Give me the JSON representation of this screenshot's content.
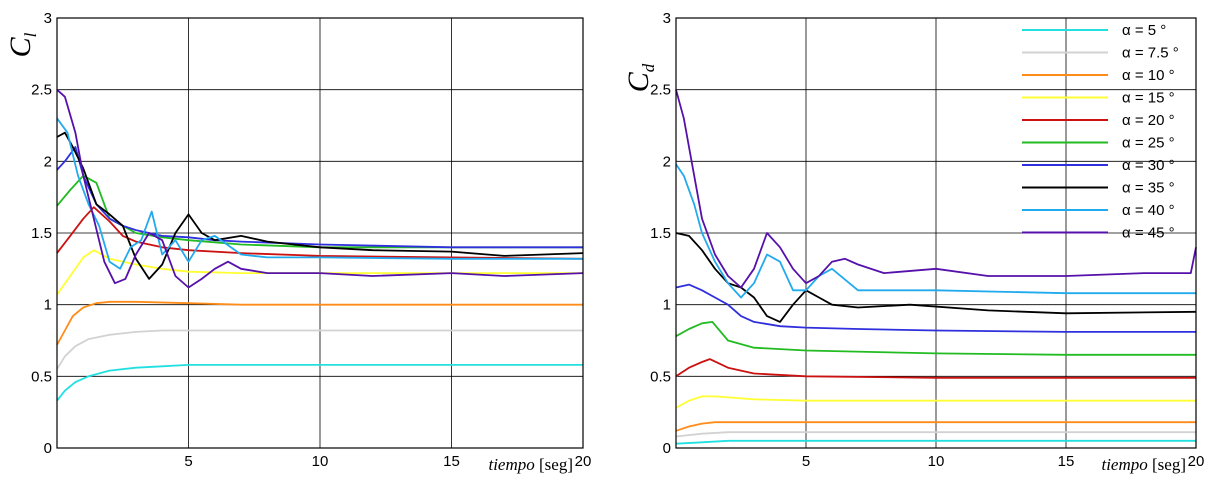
{
  "chart_data": [
    {
      "type": "line",
      "title": "",
      "ylabel": "C",
      "ylabel_sub": "l",
      "xlabel_italic": "tiempo",
      "xlabel_unit": "[seg]",
      "xlim": [
        0,
        20
      ],
      "ylim": [
        0,
        3
      ],
      "x_ticks": [
        "5",
        "10",
        "15",
        "20"
      ],
      "y_ticks": [
        "0",
        "0.5",
        "1",
        "1.5",
        "2",
        "2.5",
        "3"
      ],
      "grid": true,
      "series": [
        {
          "name": "α = 5 °",
          "color": "#22e0e0",
          "x": [
            0,
            0.3,
            0.7,
            1.2,
            2,
            3,
            4,
            5,
            7,
            10,
            15,
            20
          ],
          "y": [
            0.33,
            0.4,
            0.46,
            0.5,
            0.54,
            0.56,
            0.57,
            0.58,
            0.58,
            0.58,
            0.58,
            0.58
          ]
        },
        {
          "name": "α = 7.5 °",
          "color": "#d2d2d2",
          "x": [
            0,
            0.3,
            0.7,
            1.2,
            2,
            3,
            4,
            5,
            7,
            10,
            15,
            20
          ],
          "y": [
            0.55,
            0.64,
            0.71,
            0.76,
            0.79,
            0.81,
            0.82,
            0.82,
            0.82,
            0.82,
            0.82,
            0.82
          ]
        },
        {
          "name": "α = 10 °",
          "color": "#ff8c1a",
          "x": [
            0,
            0.3,
            0.6,
            1,
            1.5,
            2,
            3,
            5,
            7,
            10,
            15,
            20
          ],
          "y": [
            0.72,
            0.82,
            0.92,
            0.98,
            1.01,
            1.02,
            1.02,
            1.01,
            1.0,
            1.0,
            1.0,
            1.0
          ]
        },
        {
          "name": "α = 15 °",
          "color": "#ffff33",
          "x": [
            0,
            0.5,
            1,
            1.4,
            2,
            3,
            4,
            5,
            7,
            10,
            15,
            20
          ],
          "y": [
            1.07,
            1.2,
            1.33,
            1.38,
            1.32,
            1.28,
            1.25,
            1.23,
            1.22,
            1.22,
            1.22,
            1.22
          ]
        },
        {
          "name": "α = 20 °",
          "color": "#cc1111",
          "x": [
            0,
            0.5,
            1,
            1.4,
            2,
            2.5,
            3,
            4,
            5,
            7,
            10,
            15,
            20
          ],
          "y": [
            1.36,
            1.48,
            1.6,
            1.68,
            1.58,
            1.48,
            1.44,
            1.4,
            1.38,
            1.36,
            1.34,
            1.33,
            1.32
          ]
        },
        {
          "name": "α = 25 °",
          "color": "#22bb22",
          "x": [
            0,
            0.5,
            1,
            1.5,
            2,
            2.5,
            3,
            4,
            5,
            7,
            10,
            15,
            20
          ],
          "y": [
            1.69,
            1.8,
            1.9,
            1.85,
            1.6,
            1.55,
            1.5,
            1.47,
            1.45,
            1.42,
            1.4,
            1.4,
            1.4
          ]
        },
        {
          "name": "α = 30 °",
          "color": "#2f2fdd",
          "x": [
            0,
            0.3,
            0.7,
            1,
            1.5,
            2,
            2.5,
            3,
            3.5,
            4,
            5,
            6,
            7,
            10,
            15,
            20
          ],
          "y": [
            1.94,
            2.0,
            2.1,
            1.9,
            1.7,
            1.6,
            1.55,
            1.52,
            1.5,
            1.48,
            1.47,
            1.45,
            1.44,
            1.42,
            1.4,
            1.4
          ]
        },
        {
          "name": "α = 35 °",
          "color": "#000000",
          "x": [
            0,
            0.3,
            0.6,
            1,
            1.5,
            2,
            2.5,
            3,
            3.5,
            4,
            4.5,
            5,
            5.5,
            6,
            7,
            8,
            10,
            12,
            15,
            17,
            20
          ],
          "y": [
            2.17,
            2.2,
            2.1,
            1.95,
            1.7,
            1.63,
            1.55,
            1.32,
            1.18,
            1.28,
            1.5,
            1.63,
            1.5,
            1.45,
            1.48,
            1.44,
            1.4,
            1.38,
            1.37,
            1.34,
            1.36
          ]
        },
        {
          "name": "α = 40 °",
          "color": "#22aaee",
          "x": [
            0,
            0.4,
            0.8,
            1.2,
            1.6,
            2,
            2.4,
            2.8,
            3.2,
            3.6,
            4,
            4.5,
            5,
            5.5,
            6,
            7,
            8,
            10,
            15,
            20
          ],
          "y": [
            2.3,
            2.2,
            1.9,
            1.7,
            1.55,
            1.3,
            1.25,
            1.4,
            1.45,
            1.65,
            1.35,
            1.45,
            1.3,
            1.45,
            1.48,
            1.35,
            1.33,
            1.33,
            1.32,
            1.32
          ]
        },
        {
          "name": "α = 45 °",
          "color": "#5511aa",
          "x": [
            0,
            0.3,
            0.7,
            1,
            1.4,
            1.8,
            2.2,
            2.6,
            3,
            3.5,
            4,
            4.5,
            5,
            5.5,
            6,
            6.5,
            7,
            8,
            10,
            12,
            15,
            17,
            20
          ],
          "y": [
            2.5,
            2.45,
            2.2,
            1.9,
            1.6,
            1.3,
            1.15,
            1.18,
            1.35,
            1.5,
            1.45,
            1.2,
            1.12,
            1.18,
            1.25,
            1.3,
            1.25,
            1.22,
            1.22,
            1.2,
            1.22,
            1.2,
            1.22
          ]
        }
      ]
    },
    {
      "type": "line",
      "title": "",
      "ylabel": "C",
      "ylabel_sub": "d",
      "xlabel_italic": "tiempo",
      "xlabel_unit": "[seg]",
      "xlim": [
        0,
        20
      ],
      "ylim": [
        0,
        3
      ],
      "x_ticks": [
        "5",
        "10",
        "15",
        "20"
      ],
      "y_ticks": [
        "0",
        "0.5",
        "1",
        "1.5",
        "2",
        "2.5",
        "3"
      ],
      "grid": true,
      "legend": "top-right",
      "series": [
        {
          "name": "α = 5 °",
          "color": "#22e0e0",
          "x": [
            0,
            1,
            2,
            5,
            10,
            20
          ],
          "y": [
            0.03,
            0.04,
            0.05,
            0.05,
            0.05,
            0.05
          ]
        },
        {
          "name": "α = 7.5 °",
          "color": "#d2d2d2",
          "x": [
            0,
            1,
            2,
            5,
            10,
            20
          ],
          "y": [
            0.08,
            0.1,
            0.11,
            0.11,
            0.11,
            0.11
          ]
        },
        {
          "name": "α = 10 °",
          "color": "#ff8c1a",
          "x": [
            0,
            0.5,
            1,
            1.5,
            3,
            5,
            10,
            20
          ],
          "y": [
            0.12,
            0.15,
            0.17,
            0.18,
            0.18,
            0.18,
            0.18,
            0.18
          ]
        },
        {
          "name": "α = 15 °",
          "color": "#ffff33",
          "x": [
            0,
            0.5,
            1,
            1.5,
            3,
            5,
            10,
            20
          ],
          "y": [
            0.28,
            0.33,
            0.36,
            0.36,
            0.34,
            0.33,
            0.33,
            0.33
          ]
        },
        {
          "name": "α = 20 °",
          "color": "#cc1111",
          "x": [
            0,
            0.5,
            1,
            1.3,
            2,
            3,
            5,
            10,
            20
          ],
          "y": [
            0.5,
            0.56,
            0.6,
            0.62,
            0.56,
            0.52,
            0.5,
            0.49,
            0.49
          ]
        },
        {
          "name": "α = 25 °",
          "color": "#22bb22",
          "x": [
            0,
            0.5,
            1,
            1.4,
            2,
            3,
            5,
            10,
            15,
            20
          ],
          "y": [
            0.78,
            0.83,
            0.87,
            0.88,
            0.75,
            0.7,
            0.68,
            0.66,
            0.65,
            0.65
          ]
        },
        {
          "name": "α = 30 °",
          "color": "#2f2fdd",
          "x": [
            0,
            0.5,
            1,
            1.5,
            2,
            2.5,
            3,
            4,
            5,
            7,
            10,
            15,
            20
          ],
          "y": [
            1.12,
            1.14,
            1.1,
            1.05,
            1.0,
            0.92,
            0.88,
            0.85,
            0.84,
            0.83,
            0.82,
            0.81,
            0.81
          ]
        },
        {
          "name": "α = 35 °",
          "color": "#000000",
          "x": [
            0,
            0.5,
            1,
            1.5,
            2,
            2.5,
            3,
            3.5,
            4,
            4.5,
            5,
            5.5,
            6,
            7,
            9,
            12,
            15,
            20
          ],
          "y": [
            1.5,
            1.48,
            1.38,
            1.25,
            1.15,
            1.12,
            1.05,
            0.92,
            0.88,
            1.0,
            1.1,
            1.05,
            1.0,
            0.98,
            1.0,
            0.96,
            0.94,
            0.95
          ]
        },
        {
          "name": "α = 40 °",
          "color": "#22aaee",
          "x": [
            0,
            0.3,
            0.7,
            1,
            1.5,
            2,
            2.5,
            3,
            3.5,
            4,
            4.5,
            5,
            5.5,
            6,
            7,
            10,
            15,
            20
          ],
          "y": [
            1.98,
            1.9,
            1.7,
            1.5,
            1.3,
            1.15,
            1.05,
            1.15,
            1.35,
            1.3,
            1.1,
            1.1,
            1.2,
            1.25,
            1.1,
            1.1,
            1.08,
            1.08
          ]
        },
        {
          "name": "α = 45 °",
          "color": "#5511aa",
          "x": [
            0,
            0.3,
            0.7,
            1,
            1.5,
            2,
            2.5,
            3,
            3.5,
            4,
            4.5,
            5,
            5.5,
            6,
            6.5,
            7,
            8,
            10,
            12,
            15,
            18,
            19.8,
            20
          ],
          "y": [
            2.5,
            2.3,
            1.9,
            1.6,
            1.35,
            1.2,
            1.12,
            1.25,
            1.5,
            1.4,
            1.25,
            1.15,
            1.2,
            1.3,
            1.32,
            1.28,
            1.22,
            1.25,
            1.2,
            1.2,
            1.22,
            1.22,
            1.4
          ]
        }
      ]
    }
  ]
}
